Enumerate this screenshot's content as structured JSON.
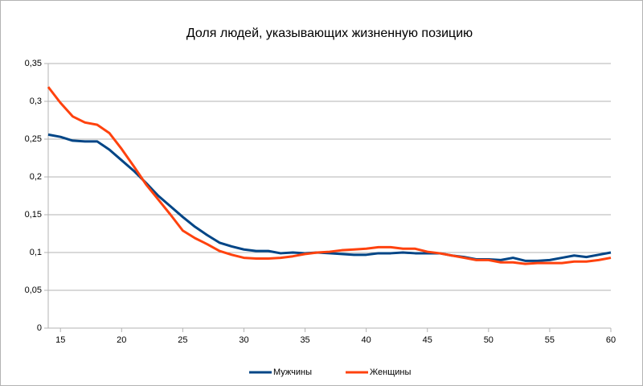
{
  "chart_data": {
    "type": "line",
    "title": "Доля людей, указывающих жизненную позицию",
    "x": [
      14,
      15,
      16,
      17,
      18,
      19,
      20,
      21,
      22,
      23,
      24,
      25,
      26,
      27,
      28,
      29,
      30,
      31,
      32,
      33,
      34,
      35,
      36,
      37,
      38,
      39,
      40,
      41,
      42,
      43,
      44,
      45,
      46,
      47,
      48,
      49,
      50,
      51,
      52,
      53,
      54,
      55,
      56,
      57,
      58,
      59,
      60
    ],
    "series": [
      {
        "name": "Мужчины",
        "color": "#004586",
        "values": [
          0.256,
          0.253,
          0.248,
          0.247,
          0.247,
          0.236,
          0.222,
          0.208,
          0.192,
          0.175,
          0.161,
          0.147,
          0.134,
          0.123,
          0.113,
          0.108,
          0.104,
          0.102,
          0.102,
          0.099,
          0.1,
          0.099,
          0.1,
          0.099,
          0.098,
          0.097,
          0.097,
          0.099,
          0.099,
          0.1,
          0.099,
          0.099,
          0.099,
          0.096,
          0.094,
          0.091,
          0.091,
          0.09,
          0.093,
          0.089,
          0.089,
          0.09,
          0.093,
          0.096,
          0.094,
          0.097,
          0.1
        ]
      },
      {
        "name": "Женщины",
        "color": "#ff420e",
        "values": [
          0.319,
          0.298,
          0.28,
          0.272,
          0.269,
          0.258,
          0.237,
          0.214,
          0.19,
          0.17,
          0.15,
          0.129,
          0.119,
          0.111,
          0.102,
          0.097,
          0.093,
          0.092,
          0.092,
          0.093,
          0.095,
          0.098,
          0.1,
          0.101,
          0.103,
          0.104,
          0.105,
          0.107,
          0.107,
          0.105,
          0.105,
          0.101,
          0.099,
          0.096,
          0.093,
          0.09,
          0.09,
          0.087,
          0.087,
          0.085,
          0.086,
          0.086,
          0.086,
          0.088,
          0.088,
          0.09,
          0.093
        ]
      }
    ],
    "xlim": [
      14,
      60
    ],
    "xticks": [
      15,
      20,
      25,
      30,
      35,
      40,
      45,
      50,
      55,
      60
    ],
    "ylim": [
      0,
      0.35
    ],
    "yticks": [
      0,
      {
        "value": 0.05,
        "label": "0,05"
      },
      {
        "value": 0.1,
        "label": "0,1"
      },
      {
        "value": 0.15,
        "label": "0,15"
      },
      {
        "value": 0.2,
        "label": "0,2"
      },
      {
        "value": 0.25,
        "label": "0,25"
      },
      {
        "value": 0.3,
        "label": "0,3"
      },
      {
        "value": 0.35,
        "label": "0,35"
      }
    ],
    "grid": true,
    "legend": "bottom"
  }
}
